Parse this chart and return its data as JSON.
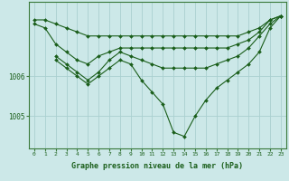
{
  "xlabel": "Graphe pression niveau de la mer (hPa)",
  "bg_color": "#cce8e8",
  "grid_color": "#aad0d0",
  "line_color": "#1a5e1a",
  "marker_color": "#1a5e1a",
  "ylim_min": 1004.2,
  "ylim_max": 1007.85,
  "xlim_min": -0.5,
  "xlim_max": 23.5,
  "yticks": [
    1005,
    1006
  ],
  "xticks": [
    0,
    1,
    2,
    3,
    4,
    5,
    6,
    7,
    8,
    9,
    10,
    11,
    12,
    13,
    14,
    15,
    16,
    17,
    18,
    19,
    20,
    21,
    22,
    23
  ],
  "series": [
    {
      "x": [
        0,
        1,
        2,
        3,
        4,
        5,
        6,
        7,
        8,
        9,
        10,
        11,
        12,
        13,
        14,
        15,
        16,
        17,
        18,
        19,
        20,
        21,
        22,
        23
      ],
      "y": [
        1007.4,
        1007.4,
        1007.3,
        1007.2,
        1007.1,
        1007.0,
        1007.0,
        1007.0,
        1007.0,
        1007.0,
        1007.0,
        1007.0,
        1007.0,
        1007.0,
        1007.0,
        1007.0,
        1007.0,
        1007.0,
        1007.0,
        1007.0,
        1007.1,
        1007.2,
        1007.4,
        1007.5
      ]
    },
    {
      "x": [
        0,
        1,
        2,
        3,
        4,
        5,
        6,
        7,
        8,
        9,
        10,
        11,
        12,
        13,
        14,
        15,
        16,
        17,
        18,
        19,
        20,
        21,
        22,
        23
      ],
      "y": [
        1007.3,
        1007.2,
        1006.8,
        1006.6,
        1006.4,
        1006.3,
        1006.5,
        1006.6,
        1006.7,
        1006.7,
        1006.7,
        1006.7,
        1006.7,
        1006.7,
        1006.7,
        1006.7,
        1006.7,
        1006.7,
        1006.7,
        1006.8,
        1006.9,
        1007.1,
        1007.4,
        1007.5
      ]
    },
    {
      "x": [
        2,
        3,
        4,
        5,
        6,
        7,
        8,
        9,
        10,
        11,
        12,
        13,
        14,
        15,
        16,
        17,
        18,
        19,
        20,
        21,
        22,
        23
      ],
      "y": [
        1006.5,
        1006.3,
        1006.1,
        1005.9,
        1006.1,
        1006.4,
        1006.6,
        1006.5,
        1006.4,
        1006.3,
        1006.2,
        1006.2,
        1006.2,
        1006.2,
        1006.2,
        1006.3,
        1006.4,
        1006.5,
        1006.7,
        1007.0,
        1007.3,
        1007.5
      ]
    },
    {
      "x": [
        2,
        3,
        4,
        5,
        6,
        7,
        8,
        9,
        10,
        11,
        12,
        13,
        14,
        15,
        16,
        17,
        18,
        19,
        20,
        21,
        22,
        23
      ],
      "y": [
        1006.4,
        1006.2,
        1006.0,
        1005.8,
        1006.0,
        1006.2,
        1006.4,
        1006.3,
        1005.9,
        1005.6,
        1005.3,
        1004.6,
        1004.5,
        1005.0,
        1005.4,
        1005.7,
        1005.9,
        1006.1,
        1006.3,
        1006.6,
        1007.2,
        1007.5
      ]
    }
  ],
  "markersize": 2,
  "linewidth": 0.8
}
